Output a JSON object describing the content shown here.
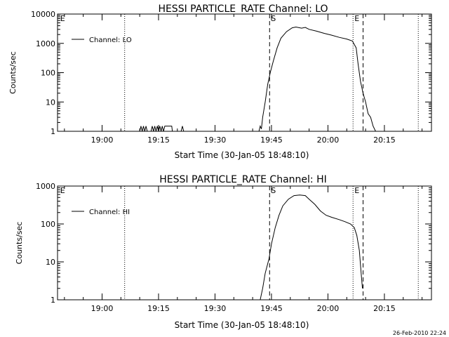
{
  "chart_data": [
    {
      "type": "line",
      "title": "HESSI PARTICLE_RATE Channel: LO",
      "xlabel": "Start Time (30-Jan-05 18:48:10)",
      "ylabel": "Counts/sec",
      "y_scale": "log",
      "xlim": [
        "18:48:10",
        "20:27:30"
      ],
      "ylim": [
        1,
        10000
      ],
      "x_ticks": [
        "19:00",
        "19:15",
        "19:30",
        "19:45",
        "20:00",
        "20:15"
      ],
      "y_ticks": [
        "1",
        "10",
        "100",
        "1000",
        "10000"
      ],
      "legend": {
        "label": "Channel: LO",
        "position": "top-left"
      },
      "markers": [
        {
          "label": "E",
          "time": "18:48:30",
          "style": "none"
        },
        {
          "label": "",
          "time": "19:06:00",
          "style": "dotted"
        },
        {
          "label": "S",
          "time": "19:44:30",
          "style": "dashed"
        },
        {
          "label": "E",
          "time": "20:06:40",
          "style": "dotted"
        },
        {
          "label": "",
          "time": "20:09:20",
          "style": "dashed"
        },
        {
          "label": "",
          "time": "20:24:00",
          "style": "dotted"
        }
      ],
      "series": [
        {
          "name": "Channel: LO",
          "points": [
            [
              "19:10:00",
              1
            ],
            [
              "19:10:20",
              1.5
            ],
            [
              "19:10:40",
              1
            ],
            [
              "19:11:00",
              1.5
            ],
            [
              "19:11:20",
              1
            ],
            [
              "19:11:40",
              1.5
            ],
            [
              "19:12:00",
              1
            ],
            [
              "19:13:00",
              1
            ],
            [
              "19:13:20",
              1.5
            ],
            [
              "19:13:40",
              1
            ],
            [
              "19:14:00",
              1.5
            ],
            [
              "19:14:20",
              1
            ],
            [
              "19:14:40",
              1.5
            ],
            [
              "19:15:00",
              1
            ],
            [
              "19:15:20",
              1.5
            ],
            [
              "19:15:40",
              1
            ],
            [
              "19:16:00",
              1.5
            ],
            [
              "19:16:20",
              1
            ],
            [
              "19:16:40",
              1.5
            ],
            [
              "19:17:00",
              1.5
            ],
            [
              "19:18:30",
              1.5
            ],
            [
              "19:18:40",
              1
            ],
            [
              "19:21:00",
              1
            ],
            [
              "19:21:20",
              1.5
            ],
            [
              "19:21:40",
              1
            ],
            [
              "19:41:40",
              1
            ],
            [
              "19:42:00",
              1.5
            ],
            [
              "19:42:20",
              1.2
            ],
            [
              "19:42:40",
              3
            ],
            [
              "19:43:20",
              10
            ],
            [
              "19:44:00",
              40
            ],
            [
              "19:44:40",
              100
            ],
            [
              "19:45:30",
              250
            ],
            [
              "19:46:30",
              700
            ],
            [
              "19:47:30",
              1500
            ],
            [
              "19:49:00",
              2500
            ],
            [
              "19:50:30",
              3400
            ],
            [
              "19:51:30",
              3600
            ],
            [
              "19:53:00",
              3300
            ],
            [
              "19:54:00",
              3500
            ],
            [
              "19:55:00",
              3000
            ],
            [
              "19:57:00",
              2600
            ],
            [
              "19:59:00",
              2200
            ],
            [
              "20:01:00",
              1900
            ],
            [
              "20:03:00",
              1600
            ],
            [
              "20:05:00",
              1400
            ],
            [
              "20:06:30",
              1200
            ],
            [
              "20:07:30",
              700
            ],
            [
              "20:08:00",
              200
            ],
            [
              "20:08:40",
              50
            ],
            [
              "20:09:20",
              20
            ],
            [
              "20:10:00",
              10
            ],
            [
              "20:10:40",
              4
            ],
            [
              "20:11:20",
              3
            ],
            [
              "20:12:00",
              1.5
            ],
            [
              "20:12:40",
              1
            ]
          ]
        }
      ]
    },
    {
      "type": "line",
      "title": "HESSI PARTICLE_RATE Channel: HI",
      "xlabel": "Start Time (30-Jan-05 18:48:10)",
      "ylabel": "Counts/sec",
      "y_scale": "log",
      "xlim": [
        "18:48:10",
        "20:27:30"
      ],
      "ylim": [
        1,
        1000
      ],
      "x_ticks": [
        "19:00",
        "19:15",
        "19:30",
        "19:45",
        "20:00",
        "20:15"
      ],
      "y_ticks": [
        "1",
        "10",
        "100",
        "1000"
      ],
      "legend": {
        "label": "Channel: HI",
        "position": "top-left"
      },
      "markers": [
        {
          "label": "E",
          "time": "18:48:30",
          "style": "none"
        },
        {
          "label": "",
          "time": "19:06:00",
          "style": "dotted"
        },
        {
          "label": "S",
          "time": "19:44:30",
          "style": "dashed"
        },
        {
          "label": "E",
          "time": "20:06:40",
          "style": "dotted"
        },
        {
          "label": "",
          "time": "20:09:20",
          "style": "dashed"
        },
        {
          "label": "",
          "time": "20:24:00",
          "style": "dotted"
        }
      ],
      "series": [
        {
          "name": "Channel: HI",
          "points": [
            [
              "19:42:00",
              1
            ],
            [
              "19:42:40",
              2
            ],
            [
              "19:43:20",
              5
            ],
            [
              "19:44:20",
              12
            ],
            [
              "19:45:00",
              30
            ],
            [
              "19:46:00",
              80
            ],
            [
              "19:47:00",
              170
            ],
            [
              "19:48:00",
              300
            ],
            [
              "19:49:30",
              450
            ],
            [
              "19:51:00",
              560
            ],
            [
              "19:52:30",
              580
            ],
            [
              "19:54:00",
              560
            ],
            [
              "19:55:00",
              450
            ],
            [
              "19:56:30",
              330
            ],
            [
              "19:58:00",
              220
            ],
            [
              "19:59:30",
              170
            ],
            [
              "20:01:00",
              150
            ],
            [
              "20:03:00",
              130
            ],
            [
              "20:04:30",
              115
            ],
            [
              "20:06:00",
              100
            ],
            [
              "20:07:00",
              80
            ],
            [
              "20:07:40",
              50
            ],
            [
              "20:08:20",
              20
            ],
            [
              "20:08:50",
              5
            ],
            [
              "20:09:10",
              2
            ]
          ]
        }
      ]
    }
  ],
  "timestamp": "26-Feb-2010 22:24"
}
